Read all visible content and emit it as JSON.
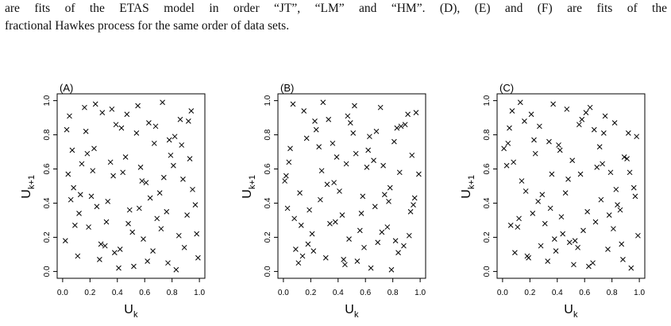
{
  "caption": [
    "are fits of the ETAS model in order “JT”, “LM” and “HM”. (D), (E) and (F) are fits of the",
    "fractional Hawkes process for the same order of data sets."
  ],
  "chart_data": [
    {
      "type": "scatter",
      "title": "(A)",
      "xlabel": {
        "base": "U",
        "sub": "k"
      },
      "ylabel": {
        "base": "U",
        "sub": "k+1"
      },
      "marker": "x",
      "color": "#000000",
      "xlim": [
        -0.04,
        1.04
      ],
      "ylim": [
        -0.04,
        1.04
      ],
      "xticks": [
        {
          "value": 0,
          "label": "0.0"
        },
        {
          "value": 0.2,
          "label": "0.2"
        },
        {
          "value": 0.4,
          "label": "0.4"
        },
        {
          "value": 0.6,
          "label": "0.6"
        },
        {
          "value": 0.8,
          "label": "0.8"
        },
        {
          "value": 1,
          "label": "1.0"
        }
      ],
      "yticks": [
        {
          "value": 0,
          "label": "0.0"
        },
        {
          "value": 0.2,
          "label": "0.2"
        },
        {
          "value": 0.4,
          "label": "0.4"
        },
        {
          "value": 0.6,
          "label": "0.6"
        },
        {
          "value": 0.8,
          "label": "0.8"
        },
        {
          "value": 1,
          "label": "1.0"
        }
      ],
      "x": [
        0.05,
        0.12,
        0.23,
        0.31,
        0.44,
        0.52,
        0.63,
        0.71,
        0.85,
        0.93,
        0.08,
        0.17,
        0.27,
        0.36,
        0.48,
        0.57,
        0.66,
        0.78,
        0.88,
        0.97,
        0.02,
        0.14,
        0.21,
        0.39,
        0.41,
        0.55,
        0.69,
        0.74,
        0.82,
        0.99,
        0.07,
        0.19,
        0.29,
        0.33,
        0.46,
        0.59,
        0.61,
        0.77,
        0.86,
        0.91,
        0.04,
        0.11,
        0.25,
        0.35,
        0.43,
        0.51,
        0.67,
        0.73,
        0.89,
        0.95,
        0.09,
        0.16,
        0.22,
        0.38,
        0.49,
        0.54,
        0.64,
        0.79,
        0.83,
        0.92,
        0.03,
        0.13,
        0.28,
        0.32,
        0.47,
        0.58,
        0.62,
        0.76,
        0.87,
        0.98,
        0.06,
        0.18,
        0.24,
        0.37,
        0.42,
        0.56,
        0.68,
        0.72,
        0.81,
        0.94
      ],
      "values": [
        0.91,
        0.34,
        0.72,
        0.15,
        0.58,
        0.03,
        0.87,
        0.46,
        0.21,
        0.66,
        0.49,
        0.82,
        0.07,
        0.95,
        0.28,
        0.61,
        0.12,
        0.77,
        0.54,
        0.39,
        0.18,
        0.63,
        0.44,
        0.86,
        0.02,
        0.97,
        0.31,
        0.55,
        0.79,
        0.08,
        0.71,
        0.26,
        0.93,
        0.41,
        0.67,
        0.19,
        0.52,
        0.05,
        0.89,
        0.33,
        0.57,
        0.09,
        0.38,
        0.64,
        0.84,
        0.23,
        0.75,
        0.99,
        0.14,
        0.48,
        0.27,
        0.96,
        0.59,
        0.11,
        0.36,
        0.81,
        0.43,
        0.68,
        0.01,
        0.88,
        0.83,
        0.45,
        0.16,
        0.29,
        0.92,
        0.53,
        0.06,
        0.35,
        0.74,
        0.22,
        0.42,
        0.69,
        0.98,
        0.56,
        0.13,
        0.37,
        0.85,
        0.25,
        0.62,
        0.94
      ]
    },
    {
      "type": "scatter",
      "title": "(B)",
      "xlabel": {
        "base": "U",
        "sub": "k"
      },
      "ylabel": {
        "base": "U",
        "sub": "k+1"
      },
      "marker": "x",
      "color": "#000000",
      "xlim": [
        -0.04,
        1.04
      ],
      "ylim": [
        -0.04,
        1.04
      ],
      "xticks": [
        {
          "value": 0,
          "label": "0.0"
        },
        {
          "value": 0.2,
          "label": "0.2"
        },
        {
          "value": 0.4,
          "label": "0.4"
        },
        {
          "value": 0.6,
          "label": "0.6"
        },
        {
          "value": 0.8,
          "label": "0.8"
        },
        {
          "value": 1,
          "label": "1.0"
        }
      ],
      "yticks": [
        {
          "value": 0,
          "label": "0.0"
        },
        {
          "value": 0.2,
          "label": "0.2"
        },
        {
          "value": 0.4,
          "label": "0.4"
        },
        {
          "value": 0.6,
          "label": "0.6"
        },
        {
          "value": 0.8,
          "label": "0.8"
        },
        {
          "value": 1,
          "label": "1.0"
        }
      ],
      "x": [
        0.11,
        0.26,
        0.34,
        0.47,
        0.58,
        0.69,
        0.73,
        0.86,
        0.95,
        0.02,
        0.15,
        0.22,
        0.39,
        0.43,
        0.51,
        0.64,
        0.78,
        0.81,
        0.92,
        0.07,
        0.19,
        0.28,
        0.31,
        0.49,
        0.56,
        0.62,
        0.74,
        0.88,
        0.97,
        0.04,
        0.13,
        0.24,
        0.37,
        0.45,
        0.53,
        0.67,
        0.71,
        0.84,
        0.99,
        0.08,
        0.17,
        0.21,
        0.33,
        0.41,
        0.59,
        0.66,
        0.79,
        0.83,
        0.93,
        0.01,
        0.14,
        0.27,
        0.36,
        0.48,
        0.52,
        0.61,
        0.76,
        0.89,
        0.96,
        0.05,
        0.18,
        0.29,
        0.32,
        0.44,
        0.57,
        0.63,
        0.72,
        0.85,
        0.91,
        0.09,
        0.12,
        0.23,
        0.38,
        0.46,
        0.54,
        0.68,
        0.77,
        0.82,
        0.94,
        0.03
      ],
      "values": [
        0.05,
        0.73,
        0.28,
        0.91,
        0.44,
        0.17,
        0.62,
        0.85,
        0.39,
        0.56,
        0.94,
        0.12,
        0.67,
        0.33,
        0.81,
        0.02,
        0.49,
        0.76,
        0.21,
        0.98,
        0.36,
        0.59,
        0.08,
        0.87,
        0.24,
        0.71,
        0.45,
        0.15,
        0.93,
        0.64,
        0.27,
        0.83,
        0.52,
        0.04,
        0.69,
        0.38,
        0.96,
        0.11,
        0.57,
        0.31,
        0.78,
        0.22,
        0.89,
        0.47,
        0.14,
        0.65,
        0.01,
        0.84,
        0.35,
        0.53,
        0.09,
        0.42,
        0.75,
        0.19,
        0.97,
        0.61,
        0.26,
        0.86,
        0.43,
        0.72,
        0.16,
        0.99,
        0.51,
        0.07,
        0.34,
        0.79,
        0.23,
        0.58,
        0.92,
        0.13,
        0.46,
        0.88,
        0.29,
        0.63,
        0.06,
        0.82,
        0.41,
        0.18,
        0.68,
        0.37
      ]
    },
    {
      "type": "scatter",
      "title": "(C)",
      "xlabel": {
        "base": "U",
        "sub": "k"
      },
      "ylabel": {
        "base": "U",
        "sub": "k+1"
      },
      "marker": "x",
      "color": "#000000",
      "xlim": [
        -0.04,
        1.04
      ],
      "ylim": [
        -0.04,
        1.04
      ],
      "xticks": [
        {
          "value": 0,
          "label": "0.0"
        },
        {
          "value": 0.2,
          "label": "0.2"
        },
        {
          "value": 0.4,
          "label": "0.4"
        },
        {
          "value": 0.6,
          "label": "0.6"
        },
        {
          "value": 0.8,
          "label": "0.8"
        },
        {
          "value": 1,
          "label": "1.0"
        }
      ],
      "yticks": [
        {
          "value": 0,
          "label": "0.0"
        },
        {
          "value": 0.2,
          "label": "0.2"
        },
        {
          "value": 0.4,
          "label": "0.4"
        },
        {
          "value": 0.6,
          "label": "0.6"
        },
        {
          "value": 0.8,
          "label": "0.8"
        },
        {
          "value": 1,
          "label": "1.0"
        }
      ],
      "x": [
        0.03,
        0.18,
        0.27,
        0.35,
        0.42,
        0.59,
        0.64,
        0.77,
        0.83,
        0.98,
        0.12,
        0.21,
        0.33,
        0.48,
        0.53,
        0.67,
        0.72,
        0.89,
        0.94,
        0.06,
        0.16,
        0.29,
        0.38,
        0.41,
        0.57,
        0.63,
        0.75,
        0.86,
        0.91,
        0.09,
        0.14,
        0.23,
        0.31,
        0.47,
        0.55,
        0.69,
        0.78,
        0.82,
        0.96,
        0.01,
        0.19,
        0.26,
        0.37,
        0.44,
        0.51,
        0.62,
        0.74,
        0.87,
        0.93,
        0.07,
        0.11,
        0.24,
        0.39,
        0.46,
        0.58,
        0.66,
        0.71,
        0.84,
        0.99,
        0.05,
        0.17,
        0.28,
        0.34,
        0.43,
        0.52,
        0.61,
        0.79,
        0.81,
        0.92,
        0.08,
        0.13,
        0.22,
        0.36,
        0.49,
        0.56,
        0.68,
        0.73,
        0.88,
        0.97,
        0.04
      ],
      "values": [
        0.62,
        0.09,
        0.85,
        0.37,
        0.71,
        0.24,
        0.96,
        0.13,
        0.48,
        0.79,
        0.31,
        0.92,
        0.06,
        0.54,
        0.18,
        0.83,
        0.42,
        0.67,
        0.02,
        0.27,
        0.88,
        0.45,
        0.19,
        0.74,
        0.57,
        0.03,
        0.91,
        0.36,
        0.66,
        0.11,
        0.53,
        0.77,
        0.28,
        0.95,
        0.14,
        0.61,
        0.33,
        0.87,
        0.49,
        0.72,
        0.08,
        0.41,
        0.98,
        0.22,
        0.65,
        0.35,
        0.81,
        0.16,
        0.58,
        0.94,
        0.26,
        0.69,
        0.12,
        0.46,
        0.89,
        0.05,
        0.73,
        0.39,
        0.21,
        0.84,
        0.47,
        0.15,
        0.76,
        0.32,
        0.04,
        0.93,
        0.58,
        0.25,
        0.81,
        0.64,
        0.99,
        0.34,
        0.57,
        0.17,
        0.86,
        0.29,
        0.63,
        0.07,
        0.44,
        0.75
      ]
    }
  ]
}
